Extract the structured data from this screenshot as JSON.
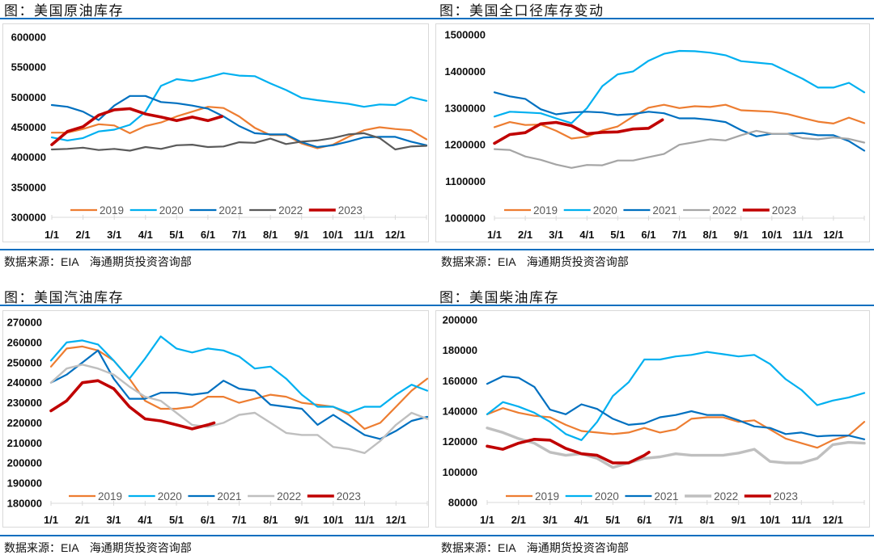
{
  "panels": [
    {
      "source": "数据来源：EIA　海通期货投资咨询部"
    },
    {
      "source": "数据来源：EIA　海通期货投资咨询部"
    },
    {
      "source": "数据来源：EIA　海通期货投资咨询部"
    },
    {
      "source": "数据来源：EIA　海通期货投资咨询部"
    }
  ],
  "chart_data": [
    {
      "type": "line",
      "title": "图：美国原油库存",
      "xlabel": "",
      "ylabel": "",
      "x_unit": "months since Jan 1",
      "xlim": [
        0,
        12
      ],
      "ylim": [
        300000,
        600000
      ],
      "yticks": [
        600000,
        550000,
        500000,
        450000,
        400000,
        350000,
        300000
      ],
      "xticks": [
        0,
        1,
        2,
        3,
        4,
        5,
        6,
        7,
        8,
        9,
        10,
        11
      ],
      "xtick_labels": [
        "1/1",
        "2/1",
        "3/1",
        "4/1",
        "5/1",
        "6/1",
        "7/1",
        "8/1",
        "9/1",
        "10/1",
        "11/1",
        "12/1"
      ],
      "grid": false,
      "legend": "bottom",
      "x": [
        0,
        0.5,
        1,
        1.5,
        2,
        2.5,
        3,
        3.5,
        4,
        4.5,
        5,
        5.5,
        6,
        6.5,
        7,
        7.5,
        8,
        8.5,
        9,
        9.5,
        10,
        10.5,
        11,
        11.5,
        12
      ],
      "series": [
        {
          "name": "2019",
          "color": "#ED7D31",
          "values": [
            441000,
            441000,
            447000,
            455000,
            453000,
            440000,
            452000,
            458000,
            468000,
            476000,
            484000,
            482000,
            468000,
            449000,
            437000,
            437000,
            423000,
            415000,
            421000,
            434000,
            445000,
            450000,
            447000,
            445000,
            430000
          ]
        },
        {
          "name": "2020",
          "color": "#00B0F0",
          "values": [
            433000,
            428000,
            432000,
            443000,
            446000,
            454000,
            476000,
            519000,
            530000,
            527000,
            533000,
            540000,
            536000,
            535000,
            523000,
            512000,
            499000,
            495000,
            492000,
            489000,
            484000,
            488000,
            487000,
            500000,
            494000
          ]
        },
        {
          "name": "2021",
          "color": "#0070C0",
          "values": [
            487000,
            484000,
            476000,
            462000,
            486000,
            502000,
            502000,
            492000,
            490000,
            486000,
            481000,
            468000,
            452000,
            440000,
            438000,
            438000,
            425000,
            417000,
            420000,
            426000,
            433000,
            434000,
            434000,
            426000,
            420000
          ]
        },
        {
          "name": "2022",
          "color": "#5A5A5A",
          "values": [
            413000,
            414000,
            416000,
            412000,
            414000,
            411000,
            417000,
            414000,
            420000,
            421000,
            417000,
            418000,
            425000,
            424000,
            431000,
            422000,
            426000,
            428000,
            432000,
            438000,
            440000,
            432000,
            413000,
            418000,
            419000
          ]
        },
        {
          "name": "2023",
          "color": "#C00000",
          "x": [
            0,
            0.5,
            1,
            1.5,
            2,
            2.5,
            3,
            3.5,
            4,
            4.5,
            5,
            5.45
          ],
          "values": [
            421000,
            443000,
            451000,
            470000,
            479000,
            481000,
            472000,
            467000,
            461000,
            467000,
            461000,
            468000
          ]
        }
      ]
    },
    {
      "type": "line",
      "title": "图：美国全口径库存变动",
      "xlabel": "",
      "ylabel": "",
      "x_unit": "months since Jan 1",
      "xlim": [
        0,
        12
      ],
      "ylim": [
        1000000,
        1500000
      ],
      "yticks": [
        1500000,
        1400000,
        1300000,
        1200000,
        1100000,
        1000000
      ],
      "xticks": [
        0,
        1,
        2,
        3,
        4,
        5,
        6,
        7,
        8,
        9,
        10,
        11
      ],
      "xtick_labels": [
        "1/1",
        "2/1",
        "3/1",
        "4/1",
        "5/1",
        "6/1",
        "7/1",
        "8/1",
        "9/1",
        "10/1",
        "11/1",
        "12/1"
      ],
      "grid": false,
      "legend": "bottom",
      "x": [
        0,
        0.5,
        1,
        1.5,
        2,
        2.5,
        3,
        3.5,
        4,
        4.5,
        5,
        5.5,
        6,
        6.5,
        7,
        7.5,
        8,
        8.5,
        9,
        9.5,
        10,
        10.5,
        11,
        11.5,
        12
      ],
      "series": [
        {
          "name": "2019",
          "color": "#ED7D31",
          "values": [
            1248000,
            1262000,
            1254000,
            1255000,
            1238000,
            1217000,
            1222000,
            1239000,
            1250000,
            1277000,
            1301000,
            1309000,
            1300000,
            1305000,
            1303000,
            1309000,
            1294000,
            1292000,
            1290000,
            1284000,
            1273000,
            1263000,
            1258000,
            1274000,
            1259000
          ]
        },
        {
          "name": "2020",
          "color": "#00B0F0",
          "values": [
            1277000,
            1290000,
            1288000,
            1286000,
            1272000,
            1259000,
            1300000,
            1360000,
            1392000,
            1400000,
            1429000,
            1448000,
            1456000,
            1455000,
            1451000,
            1444000,
            1428000,
            1424000,
            1420000,
            1400000,
            1380000,
            1356000,
            1356000,
            1369000,
            1343000
          ]
        },
        {
          "name": "2021",
          "color": "#0070C0",
          "values": [
            1343000,
            1332000,
            1325000,
            1297000,
            1283000,
            1288000,
            1290000,
            1288000,
            1281000,
            1284000,
            1290000,
            1286000,
            1272000,
            1272000,
            1268000,
            1262000,
            1240000,
            1223000,
            1230000,
            1230000,
            1232000,
            1226000,
            1226000,
            1210000,
            1184000
          ]
        },
        {
          "name": "2022",
          "color": "#A5A5A5",
          "values": [
            1188000,
            1186000,
            1168000,
            1159000,
            1146000,
            1137000,
            1145000,
            1144000,
            1157000,
            1157000,
            1166000,
            1175000,
            1200000,
            1207000,
            1215000,
            1212000,
            1226000,
            1238000,
            1230000,
            1230000,
            1218000,
            1215000,
            1220000,
            1216000,
            1206000
          ]
        },
        {
          "name": "2023",
          "color": "#C00000",
          "x": [
            0,
            0.5,
            1,
            1.5,
            2,
            2.5,
            3,
            3.5,
            4,
            4.5,
            5,
            5.45
          ],
          "values": [
            1204000,
            1228000,
            1233000,
            1257000,
            1261000,
            1252000,
            1230000,
            1234000,
            1235000,
            1243000,
            1245000,
            1268000
          ]
        }
      ]
    },
    {
      "type": "line",
      "title": "图：美国汽油库存",
      "xlabel": "",
      "ylabel": "",
      "x_unit": "months since Jan 1",
      "xlim": [
        0,
        12
      ],
      "ylim": [
        180000,
        270000
      ],
      "yticks": [
        270000,
        260000,
        250000,
        240000,
        230000,
        220000,
        210000,
        200000,
        190000,
        180000
      ],
      "xticks": [
        0,
        1,
        2,
        3,
        4,
        5,
        6,
        7,
        8,
        9,
        10,
        11
      ],
      "xtick_labels": [
        "1/1",
        "2/1",
        "3/1",
        "4/1",
        "5/1",
        "6/1",
        "7/1",
        "8/1",
        "9/1",
        "10/1",
        "11/1",
        "12/1"
      ],
      "grid": false,
      "legend": "bottom",
      "x": [
        0,
        0.5,
        1,
        1.5,
        2,
        2.5,
        3,
        3.5,
        4,
        4.5,
        5,
        5.5,
        6,
        6.5,
        7,
        7.5,
        8,
        8.5,
        9,
        9.5,
        10,
        10.5,
        11,
        11.5,
        12
      ],
      "series": [
        {
          "name": "2019",
          "color": "#ED7D31",
          "values": [
            248000,
            257000,
            258000,
            256000,
            251000,
            242000,
            231000,
            227000,
            227000,
            228000,
            233000,
            233000,
            230000,
            232000,
            234000,
            233000,
            230000,
            229000,
            228000,
            224000,
            217000,
            220000,
            228000,
            236000,
            242000
          ]
        },
        {
          "name": "2020",
          "color": "#00B0F0",
          "values": [
            251000,
            260000,
            261000,
            259000,
            251000,
            242000,
            252000,
            263000,
            257000,
            255000,
            257000,
            256000,
            253000,
            247000,
            248000,
            242000,
            234000,
            228000,
            228000,
            225000,
            228000,
            228000,
            234000,
            239000,
            236000
          ]
        },
        {
          "name": "2021",
          "color": "#0070C0",
          "values": [
            240000,
            244000,
            250000,
            256000,
            242000,
            232000,
            232000,
            235000,
            235000,
            234000,
            235000,
            241000,
            237000,
            236000,
            229000,
            228000,
            227000,
            219000,
            224000,
            219000,
            214000,
            212000,
            216000,
            221000,
            223000
          ]
        },
        {
          "name": "2022",
          "color": "#BFBFBF",
          "values": [
            240000,
            247000,
            249000,
            247000,
            244000,
            238000,
            233000,
            231000,
            225000,
            219000,
            218000,
            220000,
            224000,
            225000,
            220000,
            215000,
            214000,
            214000,
            208000,
            207000,
            205000,
            211000,
            219000,
            225000,
            222000
          ]
        },
        {
          "name": "2023",
          "color": "#C00000",
          "x": [
            0,
            0.5,
            1,
            1.5,
            2,
            2.5,
            3,
            3.5,
            4,
            4.5,
            5,
            5.2
          ],
          "values": [
            226000,
            231000,
            240000,
            241000,
            237000,
            228000,
            222000,
            221000,
            219000,
            217000,
            219000,
            220000
          ]
        }
      ]
    },
    {
      "type": "line",
      "title": "图：美国柴油库存",
      "xlabel": "",
      "ylabel": "",
      "x_unit": "months since Jan 1",
      "xlim": [
        0,
        12
      ],
      "ylim": [
        80000,
        200000
      ],
      "yticks": [
        200000,
        180000,
        160000,
        140000,
        120000,
        100000,
        80000
      ],
      "xticks": [
        0,
        1,
        2,
        3,
        4,
        5,
        6,
        7,
        8,
        9,
        10,
        11
      ],
      "xtick_labels": [
        "1/1",
        "2/1",
        "3/1",
        "4/1",
        "5/1",
        "6/1",
        "7/1",
        "8/1",
        "9/1",
        "10/1",
        "11/1",
        "12/1"
      ],
      "grid": false,
      "legend": "bottom",
      "x": [
        0,
        0.5,
        1,
        1.5,
        2,
        2.5,
        3,
        3.5,
        4,
        4.5,
        5,
        5.5,
        6,
        6.5,
        7,
        7.5,
        8,
        8.5,
        9,
        9.5,
        10,
        10.5,
        11,
        11.5,
        12
      ],
      "series": [
        {
          "name": "2019",
          "color": "#ED7D31",
          "values": [
            138000,
            142000,
            139000,
            137000,
            136000,
            131000,
            127000,
            126000,
            125000,
            126000,
            129000,
            126000,
            128000,
            135000,
            136000,
            136000,
            133000,
            134000,
            128000,
            122000,
            119000,
            116000,
            121000,
            124000,
            133000
          ]
        },
        {
          "name": "2020",
          "color": "#00B0F0",
          "values": [
            138000,
            146000,
            143000,
            139000,
            133000,
            125000,
            121000,
            133000,
            150000,
            159000,
            174000,
            174000,
            176000,
            177000,
            179000,
            177500,
            176000,
            177000,
            171000,
            161000,
            154000,
            144000,
            147000,
            149000,
            152000
          ]
        },
        {
          "name": "2021",
          "color": "#0070C0",
          "values": [
            158000,
            163000,
            162000,
            156000,
            141000,
            138000,
            144500,
            141500,
            135000,
            131000,
            132000,
            136000,
            137500,
            140000,
            137500,
            137500,
            134000,
            130000,
            129000,
            125000,
            126000,
            123500,
            124000,
            124000,
            121500
          ]
        },
        {
          "name": "2022",
          "color": "#BFBFBF",
          "values": [
            129000,
            126000,
            122000,
            119000,
            113000,
            111000,
            112000,
            109000,
            103000,
            106000,
            109000,
            110000,
            112000,
            111000,
            111000,
            111000,
            112500,
            115000,
            107000,
            106000,
            106000,
            109000,
            118000,
            119500,
            119000
          ]
        },
        {
          "name": "2023",
          "color": "#C00000",
          "x": [
            0,
            0.5,
            1,
            1.5,
            2,
            2.5,
            3,
            3.5,
            4,
            4.5,
            5,
            5.15
          ],
          "values": [
            117000,
            115000,
            119000,
            121500,
            121000,
            115500,
            112000,
            111000,
            106000,
            106000,
            111000,
            113000
          ]
        }
      ]
    }
  ]
}
